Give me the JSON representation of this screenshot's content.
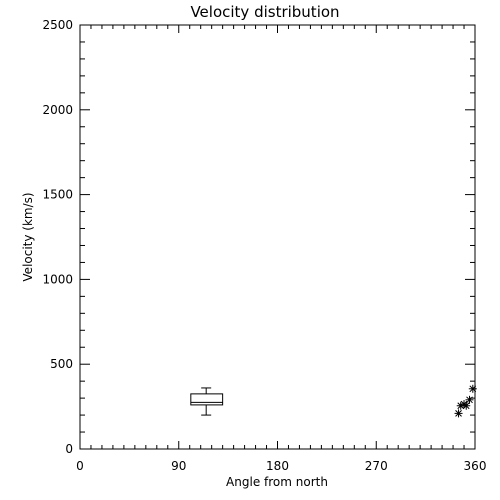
{
  "chart_data": {
    "type": "scatter",
    "title": "Velocity distribution",
    "xlabel": "Angle from north",
    "ylabel": "Velocity (km/s)",
    "xlim": [
      0,
      360
    ],
    "ylim": [
      0,
      2500
    ],
    "x_ticks": [
      0,
      90,
      180,
      270,
      360
    ],
    "x_tick_labels": [
      "0",
      "90",
      "180",
      "270",
      "360"
    ],
    "y_ticks": [
      0,
      500,
      1000,
      1500,
      2000,
      2500
    ],
    "y_tick_labels": [
      "0",
      "500",
      "1000",
      "1500",
      "2000",
      "2500"
    ],
    "grid": false,
    "boxplot": {
      "x_min": 101,
      "x_max": 130,
      "whisker_x": 115,
      "median_x": 115,
      "q1": 260,
      "median": 275,
      "q3": 325,
      "min": 200,
      "max": 360
    },
    "points": [
      {
        "x": 345,
        "y": 210
      },
      {
        "x": 347,
        "y": 255
      },
      {
        "x": 350,
        "y": 265
      },
      {
        "x": 352,
        "y": 255
      },
      {
        "x": 355,
        "y": 290
      },
      {
        "x": 358,
        "y": 355
      }
    ]
  }
}
